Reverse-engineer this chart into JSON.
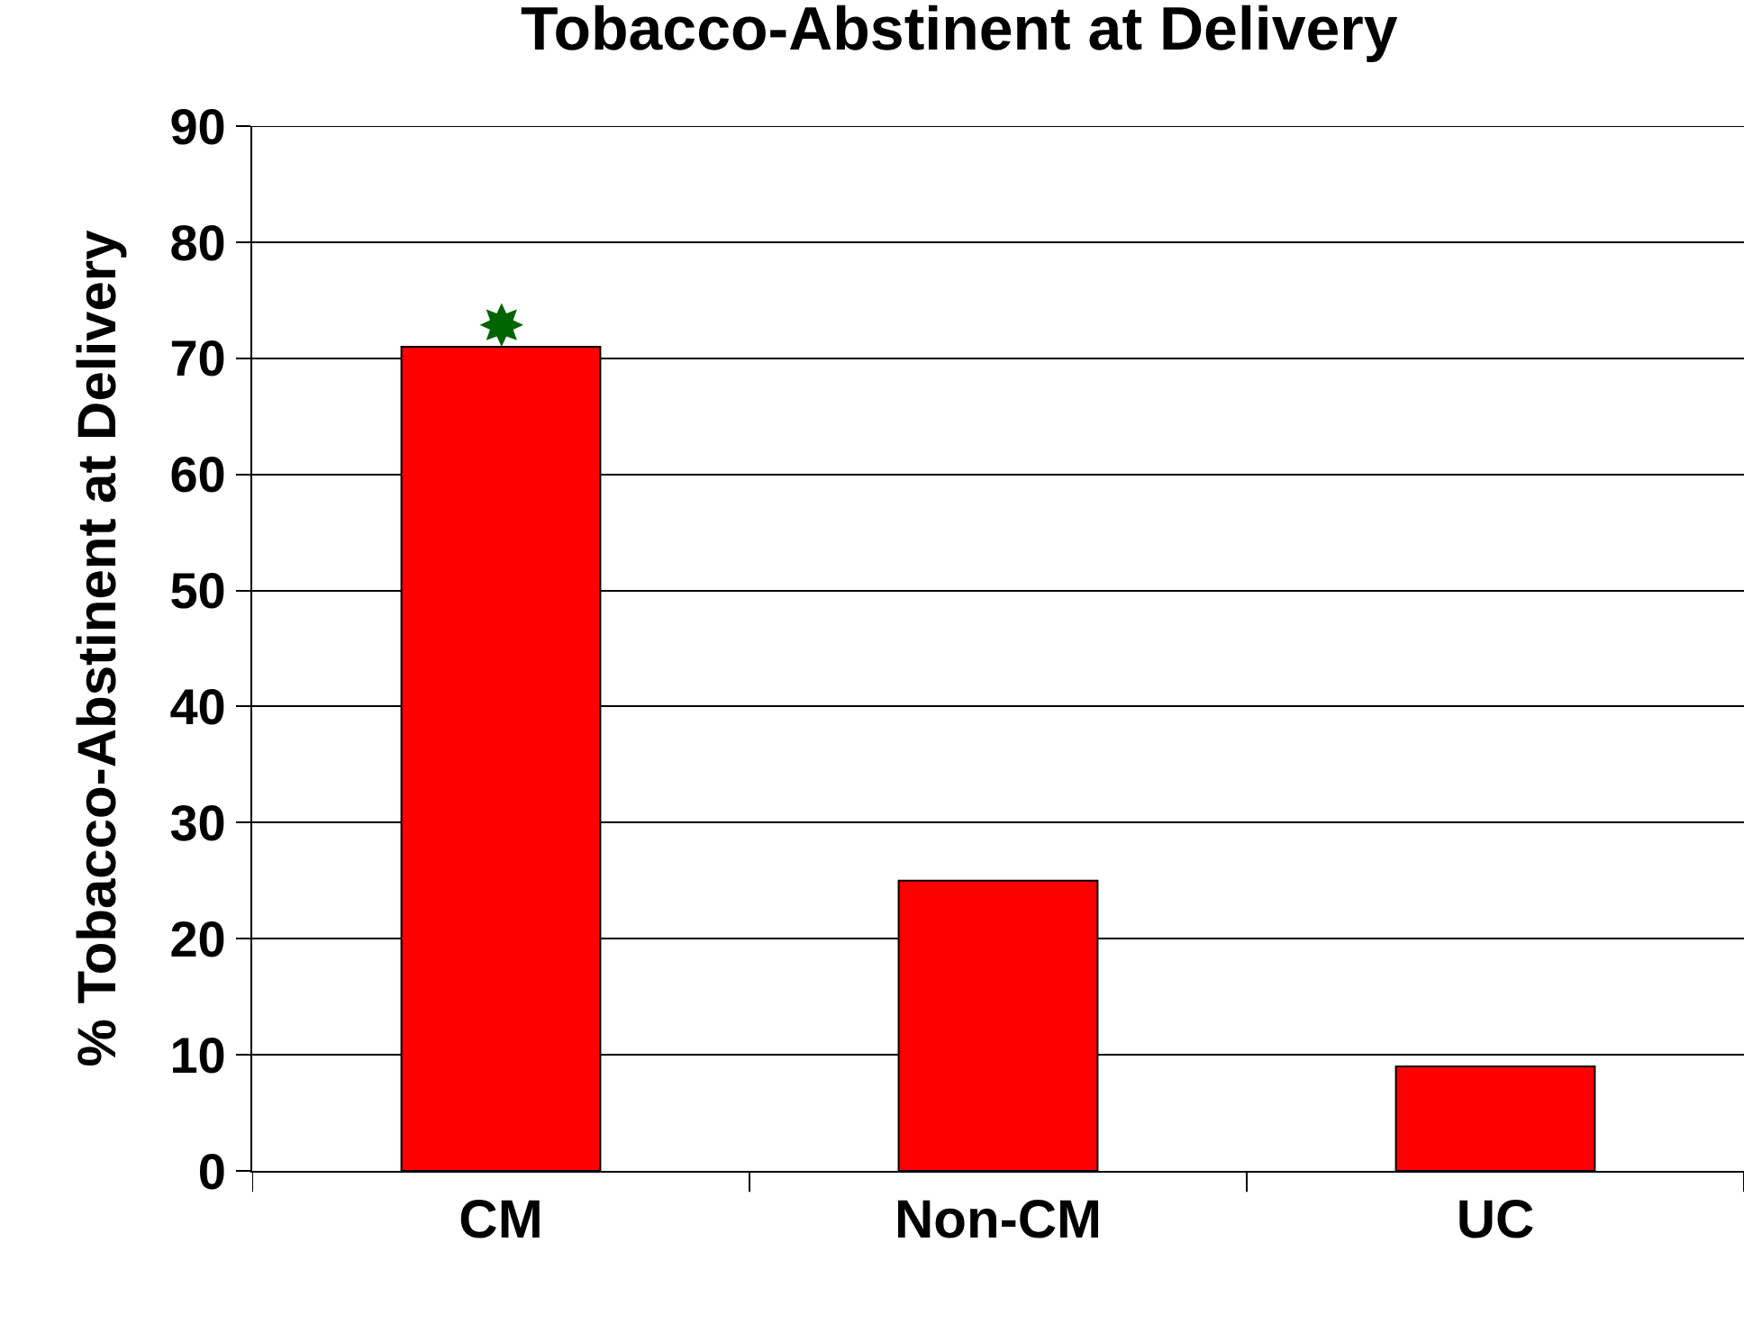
{
  "chart_data": {
    "type": "bar",
    "title": "Tobacco-Abstinent at Delivery",
    "ylabel": "% Tobacco-Abstinent at Delivery",
    "categories": [
      "CM",
      "Non-CM",
      "UC"
    ],
    "values": [
      71,
      25,
      9
    ],
    "color": "#ff0000",
    "ylim": [
      0,
      90
    ],
    "yticks": [
      0,
      10,
      20,
      30,
      40,
      50,
      60,
      70,
      80,
      90
    ],
    "grid": "y",
    "legend": false,
    "annotations": [
      "✸"
    ]
  }
}
